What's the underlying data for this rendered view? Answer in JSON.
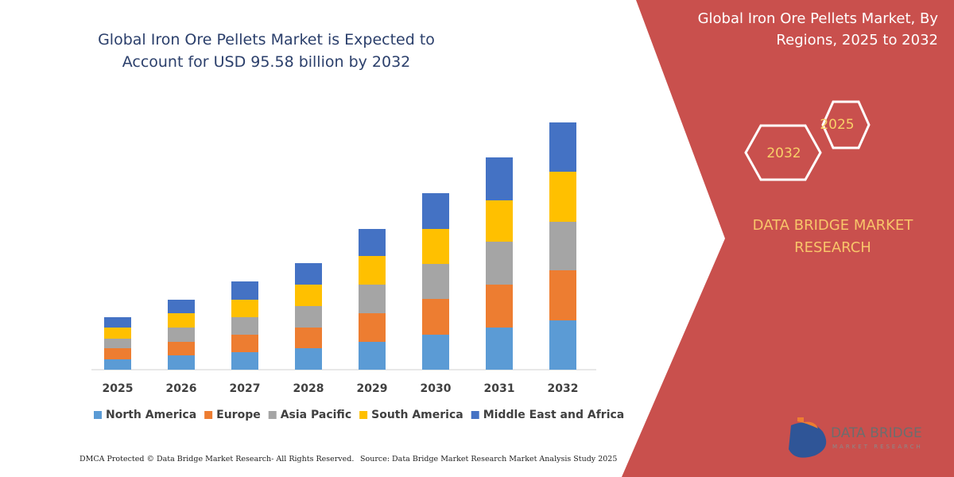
{
  "chart_data": {
    "type": "bar",
    "stacked": true,
    "title": "Global Iron Ore Pellets Market is Expected to Account for USD 95.58 billion by 2032",
    "categories": [
      "2025",
      "2026",
      "2027",
      "2028",
      "2029",
      "2030",
      "2031",
      "2032"
    ],
    "series": [
      {
        "name": "North America",
        "color": "#5b9bd5",
        "values": [
          13,
          18,
          22,
          27,
          35,
          44,
          53,
          62
        ]
      },
      {
        "name": "Europe",
        "color": "#ed7d31",
        "values": [
          14,
          17,
          22,
          26,
          36,
          45,
          54,
          63
        ]
      },
      {
        "name": "Asia Pacific",
        "color": "#a5a5a5",
        "values": [
          12,
          18,
          22,
          27,
          36,
          44,
          54,
          61
        ]
      },
      {
        "name": "South America",
        "color": "#ffc000",
        "values": [
          14,
          18,
          22,
          27,
          36,
          44,
          52,
          63
        ]
      },
      {
        "name": "Middle East and Africa",
        "color": "#4472c4",
        "values": [
          13,
          17,
          23,
          27,
          34,
          45,
          54,
          62
        ]
      }
    ],
    "ylim": [
      0,
      320
    ],
    "legend": "bottom"
  },
  "sidebar": {
    "title": "Global Iron Ore Pellets Market, By Regions, 2025 to 2032",
    "hex_large": "2032",
    "hex_small": "2025",
    "brand": "DATA BRIDGE MARKET RESEARCH",
    "logo_name": "DATA BRIDGE",
    "logo_tagline": "MARKET RESEARCH"
  },
  "footer": {
    "copyright": "DMCA Protected © Data Bridge Market Research-  All Rights Reserved.",
    "source": "Source: Data Bridge Market Research  Market Analysis Study 2025"
  }
}
